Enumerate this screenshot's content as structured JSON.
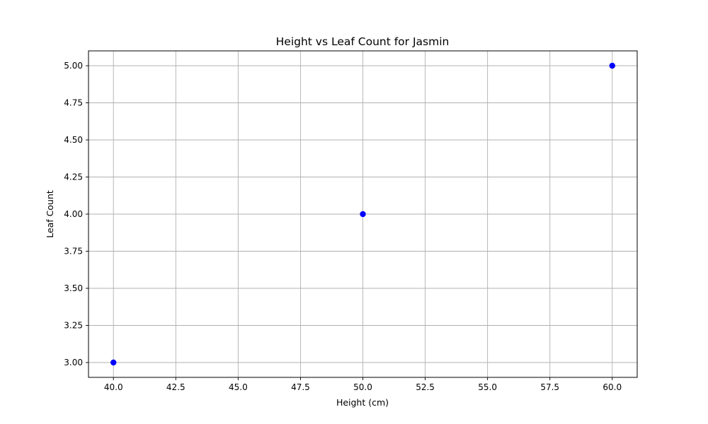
{
  "chart_data": {
    "type": "scatter",
    "title": "Height vs Leaf Count for Jasmin",
    "xlabel": "Height (cm)",
    "ylabel": "Leaf Count",
    "xlim": [
      39.0,
      61.0
    ],
    "ylim": [
      2.9,
      5.1
    ],
    "xticks": [
      40.0,
      42.5,
      45.0,
      47.5,
      50.0,
      52.5,
      55.0,
      57.5,
      60.0
    ],
    "yticks": [
      3.0,
      3.25,
      3.5,
      3.75,
      4.0,
      4.25,
      4.5,
      4.75,
      5.0
    ],
    "xtick_labels": [
      "40.0",
      "42.5",
      "45.0",
      "47.5",
      "50.0",
      "52.5",
      "55.0",
      "57.5",
      "60.0"
    ],
    "ytick_labels": [
      "3.00",
      "3.25",
      "3.50",
      "3.75",
      "4.00",
      "4.25",
      "4.50",
      "4.75",
      "5.00"
    ],
    "grid": true,
    "series": [
      {
        "color": "#0000ff",
        "x": [
          40,
          50,
          60
        ],
        "y": [
          3,
          4,
          5
        ]
      }
    ]
  }
}
